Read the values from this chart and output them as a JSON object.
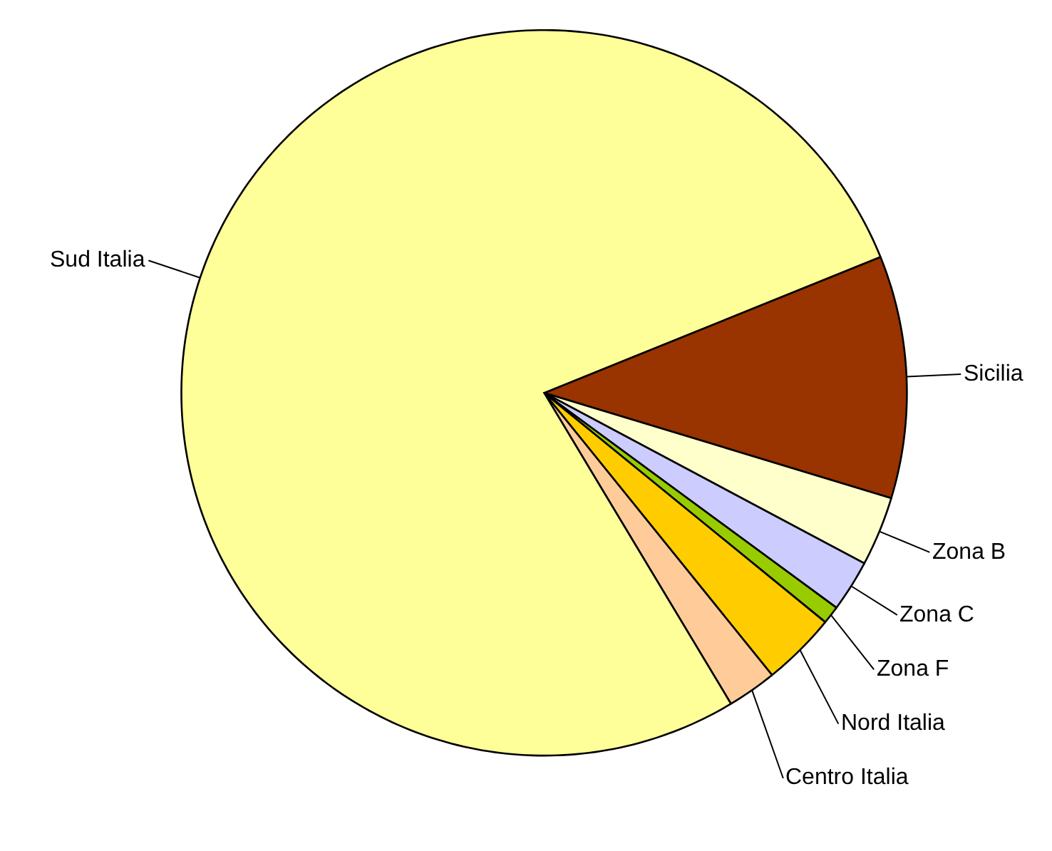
{
  "chart_data": {
    "type": "pie",
    "categories": [
      "Sicilia",
      "Zona B",
      "Zona C",
      "Zona F",
      "Nord Italia",
      "Centro Italia",
      "Sud Italia"
    ],
    "values": [
      10.8,
      3.1,
      2.3,
      0.8,
      3.3,
      2.2,
      77.5
    ],
    "colors": [
      "#993300",
      "#ffffcc",
      "#ccccff",
      "#99cc00",
      "#ffcc00",
      "#ffcc99",
      "#ffff99"
    ],
    "legend": false
  }
}
